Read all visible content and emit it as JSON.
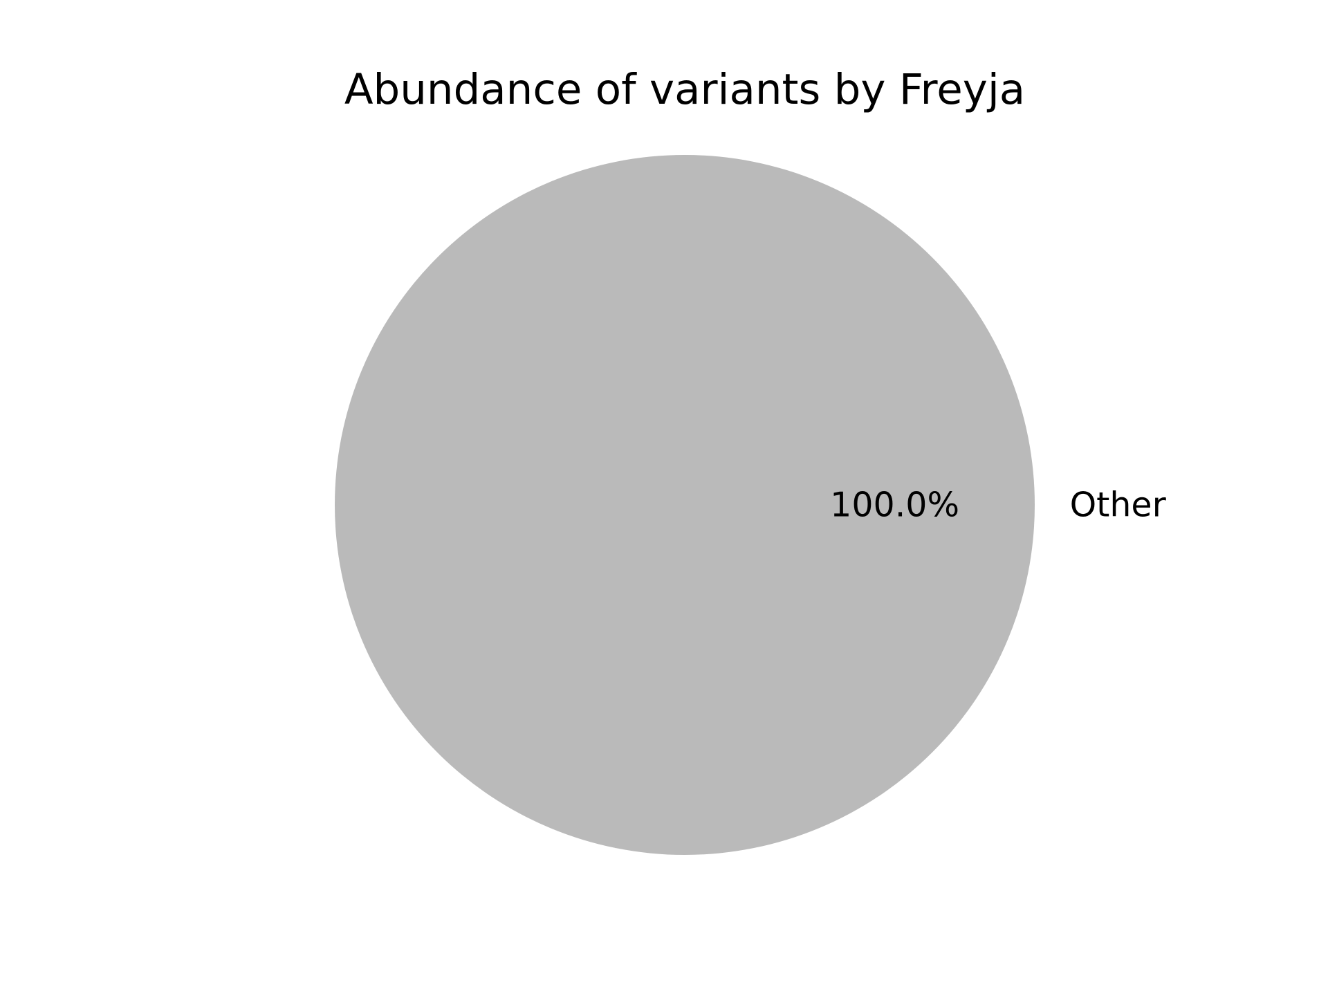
{
  "chart_data": {
    "type": "pie",
    "title": "Abundance of variants by Freyja",
    "slices": [
      {
        "label": "Other",
        "value": 100.0,
        "pct_label": "100.0%",
        "color": "#bababa"
      }
    ]
  }
}
